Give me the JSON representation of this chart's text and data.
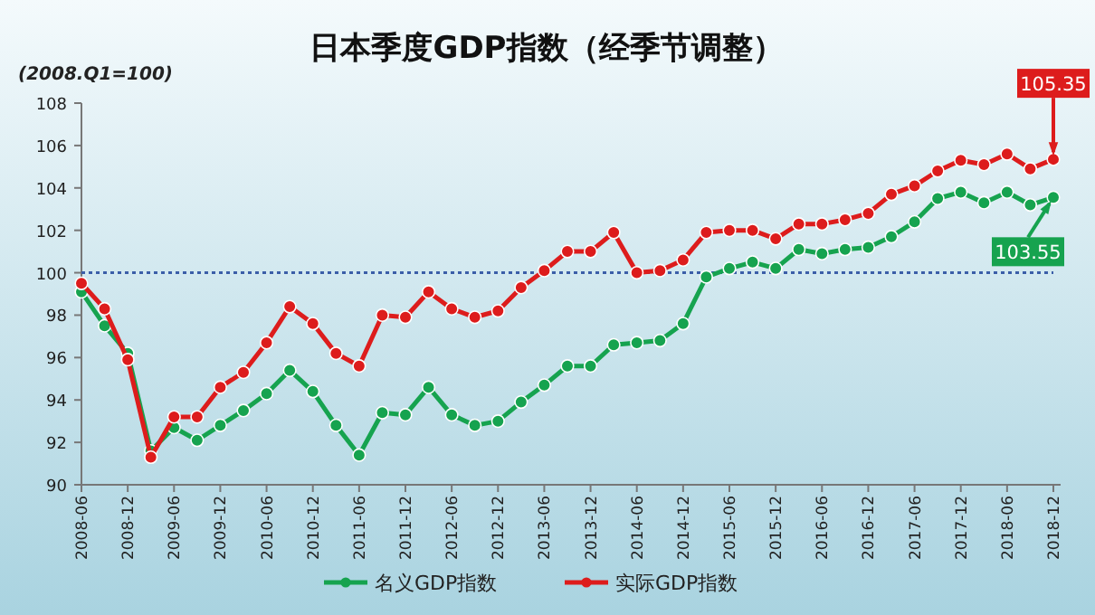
{
  "chart_data": {
    "type": "line",
    "title": "日本季度GDP指数（经季节调整）",
    "ylabel": "(2008.Q1=100)",
    "categories": [
      "2008-06",
      null,
      "2008-12",
      null,
      "2009-06",
      null,
      "2009-12",
      null,
      "2010-06",
      null,
      "2010-12",
      null,
      "2011-06",
      null,
      "2011-12",
      null,
      "2012-06",
      null,
      "2012-12",
      null,
      "2013-06",
      null,
      "2013-12",
      null,
      "2014-06",
      null,
      "2014-12",
      null,
      "2015-06",
      null,
      "2015-12",
      null,
      "2016-06",
      null,
      "2016-12",
      null,
      "2017-06",
      null,
      "2017-12",
      null,
      "2018-06",
      null,
      "2018-12"
    ],
    "series": [
      {
        "name": "名义GDP指数",
        "color": "#16a34f",
        "values": [
          99.1,
          97.5,
          96.2,
          91.6,
          92.7,
          92.1,
          92.8,
          93.5,
          94.3,
          95.4,
          94.4,
          92.8,
          91.4,
          93.4,
          93.3,
          94.6,
          93.3,
          92.8,
          93.0,
          93.9,
          94.7,
          95.6,
          95.6,
          96.6,
          96.7,
          96.8,
          97.6,
          99.8,
          100.2,
          100.5,
          100.2,
          101.1,
          100.9,
          101.1,
          101.2,
          101.7,
          102.4,
          103.5,
          103.8,
          103.3,
          103.8,
          103.2,
          103.55
        ]
      },
      {
        "name": "实际GDP指数",
        "color": "#dd1c1c",
        "values": [
          99.5,
          98.3,
          95.9,
          91.3,
          93.2,
          93.2,
          94.6,
          95.3,
          96.7,
          98.4,
          97.6,
          96.2,
          95.6,
          98.0,
          97.9,
          99.1,
          98.3,
          97.9,
          98.2,
          99.3,
          100.1,
          101.0,
          101.0,
          101.9,
          100.0,
          100.1,
          100.6,
          101.9,
          102.0,
          102.0,
          101.6,
          102.3,
          102.3,
          102.5,
          102.8,
          103.7,
          104.1,
          104.8,
          105.3,
          105.1,
          105.6,
          104.9,
          105.35
        ]
      }
    ],
    "ylim": [
      90,
      108
    ],
    "yticks": [
      90,
      92,
      94,
      96,
      98,
      100,
      102,
      104,
      106,
      108
    ],
    "ref_lines": [
      {
        "axis": "y",
        "value": 100,
        "color": "#3b5ea8",
        "line_style": "dotted"
      }
    ],
    "annotations": [
      {
        "text": "105.35",
        "x": "2018-12",
        "y": 105.35
      },
      {
        "text": "103.55",
        "x": "2018-12",
        "y": 103.55
      }
    ],
    "marker": "circle",
    "line_style": "solid",
    "legend": "bottom",
    "grid": false
  }
}
